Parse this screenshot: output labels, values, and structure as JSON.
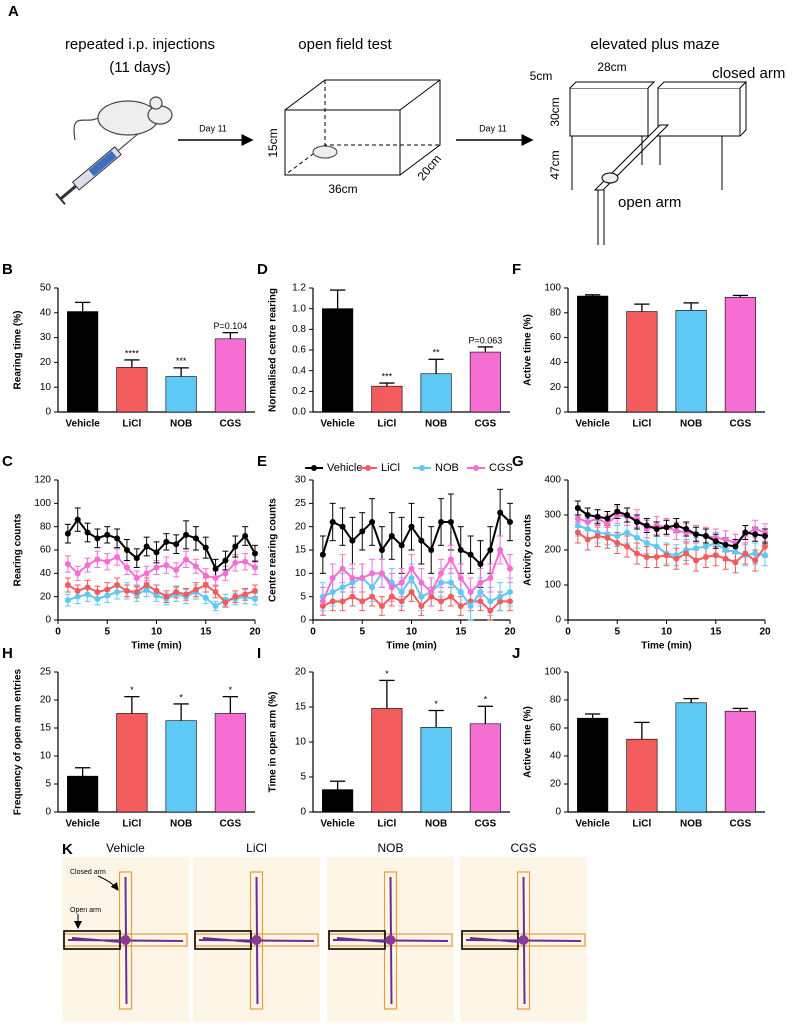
{
  "schematic": {
    "panel": "A",
    "injection_title": "repeated i.p. injections",
    "injection_duration": "(11 days)",
    "open_field_title": "open field test",
    "maze_title": "elevated plus maze",
    "arrow_labels": [
      "Day 11",
      "Day 11"
    ],
    "open_field_dims": [
      "15cm",
      "36cm",
      "20cm"
    ],
    "maze_dims": [
      "5cm",
      "28cm",
      "30cm",
      "47cm"
    ],
    "closed_arm": "closed arm",
    "open_arm": "open arm"
  },
  "chart_data": [
    {
      "panel": "B",
      "type": "bar",
      "ylabel": "Rearing time (%)",
      "categories": [
        "Vehicle",
        "LiCl",
        "NOB",
        "CGS"
      ],
      "values": [
        40.5,
        18,
        14.3,
        29.5
      ],
      "errors": [
        3.7,
        3,
        3.5,
        2.5
      ],
      "colors": [
        "#000000",
        "#f25c5c",
        "#5fc9f5",
        "#f56fd3"
      ],
      "significance": [
        null,
        "****",
        "***",
        "P=0.104"
      ],
      "ylim": [
        0,
        50
      ],
      "yticks": [
        0,
        10,
        20,
        30,
        40,
        50
      ]
    },
    {
      "panel": "D",
      "type": "bar",
      "ylabel": "Normalised centre rearing",
      "categories": [
        "Vehicle",
        "LiCl",
        "NOB",
        "CGS"
      ],
      "values": [
        1.0,
        0.25,
        0.37,
        0.58
      ],
      "errors": [
        0.18,
        0.03,
        0.14,
        0.05
      ],
      "colors": [
        "#000000",
        "#f25c5c",
        "#5fc9f5",
        "#f56fd3"
      ],
      "significance": [
        null,
        "***",
        "**",
        "P=0.063"
      ],
      "ylim": [
        0,
        1.2
      ],
      "yticks": [
        {
          "value": 0,
          "label": "0.0"
        },
        0.2,
        0.4,
        0.6,
        0.8,
        {
          "value": 1,
          "label": "1.0"
        },
        1.2
      ]
    },
    {
      "panel": "F",
      "type": "bar",
      "ylabel": "Active time (%)",
      "categories": [
        "Vehicle",
        "LiCl",
        "NOB",
        "CGS"
      ],
      "values": [
        93.5,
        81,
        82,
        92.5
      ],
      "errors": [
        1,
        6,
        6,
        1.5
      ],
      "colors": [
        "#000000",
        "#f25c5c",
        "#5fc9f5",
        "#f56fd3"
      ],
      "ylim": [
        0,
        100
      ],
      "yticks": [
        0,
        20,
        40,
        60,
        80,
        100
      ]
    },
    {
      "panel": "C",
      "type": "line",
      "xlabel": "Time (min)",
      "ylabel": "Rearing counts",
      "x": [
        1,
        2,
        3,
        4,
        5,
        6,
        7,
        8,
        9,
        10,
        11,
        12,
        13,
        14,
        15,
        16,
        17,
        18,
        19,
        20
      ],
      "xlim": [
        0,
        20
      ],
      "xticks": [
        0,
        5,
        10,
        15,
        20
      ],
      "ylim": [
        0,
        120
      ],
      "yticks": [
        0,
        20,
        40,
        60,
        80,
        100,
        120
      ],
      "series": [
        {
          "color": "#5fc9f5",
          "values": [
            17,
            20,
            22,
            18,
            21,
            24,
            25,
            22,
            26,
            21,
            18,
            22,
            20,
            24,
            19,
            12,
            17,
            18,
            20,
            18
          ],
          "errors": [
            5,
            6,
            6,
            5,
            6,
            6,
            7,
            6,
            6,
            5,
            5,
            6,
            6,
            6,
            5,
            4,
            5,
            5,
            6,
            5
          ]
        },
        {
          "color": "#f25c5c",
          "values": [
            30,
            25,
            28,
            24,
            26,
            30,
            25,
            24,
            30,
            25,
            20,
            24,
            22,
            26,
            30,
            24,
            15,
            20,
            22,
            25
          ],
          "errors": [
            6,
            5,
            6,
            5,
            6,
            6,
            5,
            5,
            6,
            5,
            5,
            5,
            5,
            6,
            6,
            5,
            4,
            5,
            5,
            5
          ]
        },
        {
          "color": "#f56fd3",
          "values": [
            48,
            40,
            47,
            52,
            50,
            54,
            45,
            36,
            40,
            45,
            47,
            43,
            52,
            46,
            38,
            36,
            40,
            49,
            50,
            45
          ],
          "errors": [
            7,
            6,
            6,
            7,
            7,
            7,
            6,
            6,
            6,
            6,
            7,
            6,
            7,
            6,
            6,
            6,
            6,
            7,
            7,
            6
          ]
        },
        {
          "color": "#000000",
          "values": [
            74,
            86,
            75,
            70,
            73,
            70,
            60,
            53,
            63,
            58,
            67,
            65,
            73,
            70,
            62,
            44,
            51,
            63,
            72,
            57
          ],
          "errors": [
            8,
            10,
            8,
            8,
            7,
            8,
            9,
            8,
            8,
            9,
            7,
            8,
            12,
            10,
            9,
            8,
            8,
            9,
            8,
            7
          ]
        }
      ]
    },
    {
      "panel": "E",
      "type": "line",
      "xlabel": "Time (min)",
      "ylabel": "Centre rearing counts",
      "legend": "top",
      "x": [
        1,
        2,
        3,
        4,
        5,
        6,
        7,
        8,
        9,
        10,
        11,
        12,
        13,
        14,
        15,
        16,
        17,
        18,
        19,
        20
      ],
      "xlim": [
        0,
        20
      ],
      "xticks": [
        0,
        5,
        10,
        15,
        20
      ],
      "ylim": [
        0,
        30
      ],
      "yticks": [
        0,
        5,
        10,
        15,
        20,
        25,
        30
      ],
      "series": [
        {
          "name": "Vehicle",
          "color": "#000000",
          "values": [
            14,
            21,
            20,
            17,
            19,
            21,
            15,
            18,
            16,
            20,
            17,
            15,
            21,
            21,
            15,
            14,
            12,
            15,
            23,
            21
          ],
          "errors": [
            4,
            4,
            4,
            5,
            4,
            5,
            5,
            5,
            6,
            5,
            5,
            5,
            5,
            6,
            5,
            4,
            5,
            5,
            5,
            4
          ]
        },
        {
          "name": "LiCl",
          "color": "#f25c5c",
          "values": [
            3,
            4,
            4,
            5,
            4,
            5,
            3,
            5,
            4,
            6,
            3,
            5,
            4,
            5,
            3,
            4,
            4,
            2,
            4,
            4
          ],
          "errors": [
            2,
            2,
            2,
            2,
            2,
            2,
            2,
            2,
            2,
            2,
            2,
            2,
            2,
            2,
            2,
            2,
            2,
            2,
            2,
            2
          ]
        },
        {
          "name": "NOB",
          "color": "#5fc9f5",
          "values": [
            5,
            6,
            7,
            8,
            9,
            7,
            10,
            8,
            6,
            9,
            5,
            6,
            8,
            8,
            6,
            3,
            6,
            4,
            5,
            6
          ],
          "errors": [
            3,
            3,
            3,
            3,
            3,
            3,
            3,
            3,
            3,
            3,
            3,
            3,
            3,
            3,
            3,
            3,
            3,
            3,
            3,
            3
          ]
        },
        {
          "name": "CGS",
          "color": "#f56fd3",
          "values": [
            4,
            9,
            11,
            9,
            9,
            10,
            10,
            7,
            8,
            11,
            8,
            6,
            10,
            13,
            9,
            6,
            8,
            9,
            15,
            11
          ],
          "errors": [
            3,
            3,
            3,
            3,
            3,
            3,
            3,
            3,
            3,
            3,
            3,
            3,
            3,
            3,
            3,
            3,
            3,
            3,
            3,
            3
          ]
        }
      ]
    },
    {
      "panel": "G",
      "type": "line",
      "xlabel": "Time (min)",
      "ylabel": "Activity counts",
      "x": [
        1,
        2,
        3,
        4,
        5,
        6,
        7,
        8,
        9,
        10,
        11,
        12,
        13,
        14,
        15,
        16,
        17,
        18,
        19,
        20
      ],
      "xlim": [
        0,
        20
      ],
      "xticks": [
        0,
        5,
        10,
        15,
        20
      ],
      "ylim": [
        0,
        400
      ],
      "yticks": [
        0,
        100,
        200,
        300,
        400
      ],
      "series": [
        {
          "color": "#5fc9f5",
          "values": [
            270,
            260,
            250,
            245,
            240,
            250,
            235,
            220,
            210,
            190,
            185,
            200,
            205,
            210,
            220,
            200,
            195,
            185,
            190,
            185
          ],
          "errors": [
            30,
            30,
            30,
            30,
            30,
            30,
            30,
            30,
            30,
            30,
            30,
            30,
            30,
            30,
            30,
            30,
            30,
            30,
            30,
            30
          ]
        },
        {
          "color": "#f25c5c",
          "values": [
            250,
            230,
            240,
            235,
            220,
            210,
            190,
            180,
            180,
            185,
            175,
            190,
            170,
            180,
            185,
            175,
            165,
            190,
            170,
            210
          ],
          "errors": [
            30,
            30,
            30,
            30,
            30,
            30,
            30,
            30,
            30,
            30,
            30,
            30,
            30,
            30,
            30,
            30,
            30,
            30,
            30,
            30
          ]
        },
        {
          "color": "#f56fd3",
          "values": [
            290,
            280,
            290,
            275,
            300,
            295,
            290,
            260,
            270,
            265,
            255,
            250,
            245,
            240,
            235,
            230,
            220,
            245,
            260,
            250
          ],
          "errors": [
            25,
            25,
            25,
            25,
            25,
            25,
            25,
            25,
            25,
            25,
            25,
            25,
            25,
            25,
            25,
            25,
            25,
            25,
            25,
            25
          ]
        },
        {
          "color": "#000000",
          "values": [
            320,
            300,
            295,
            290,
            310,
            300,
            280,
            270,
            260,
            265,
            270,
            260,
            245,
            240,
            225,
            215,
            210,
            250,
            245,
            240
          ],
          "errors": [
            20,
            20,
            20,
            20,
            20,
            20,
            20,
            20,
            20,
            20,
            20,
            20,
            20,
            20,
            20,
            20,
            20,
            20,
            20,
            20
          ]
        }
      ]
    },
    {
      "panel": "H",
      "type": "bar",
      "ylabel": "Frequency of open arm entries",
      "categories": [
        "Vehicle",
        "LiCl",
        "NOB",
        "CGS"
      ],
      "values": [
        6.4,
        17.6,
        16.3,
        17.6
      ],
      "errors": [
        1.5,
        3,
        3,
        3
      ],
      "colors": [
        "#000000",
        "#f25c5c",
        "#5fc9f5",
        "#f56fd3"
      ],
      "significance": [
        null,
        "*",
        "*",
        "*"
      ],
      "ylim": [
        0,
        25
      ],
      "yticks": [
        0,
        5,
        10,
        15,
        20,
        25
      ]
    },
    {
      "panel": "I",
      "type": "bar",
      "ylabel": "Time in open arm (%)",
      "categories": [
        "Vehicle",
        "LiCl",
        "NOB",
        "CGS"
      ],
      "values": [
        3.2,
        14.8,
        12.1,
        12.6
      ],
      "errors": [
        1.2,
        4,
        2.4,
        2.5
      ],
      "colors": [
        "#000000",
        "#f25c5c",
        "#5fc9f5",
        "#f56fd3"
      ],
      "significance": [
        null,
        "*",
        "*",
        "*"
      ],
      "ylim": [
        0,
        20
      ],
      "yticks": [
        0,
        5,
        10,
        15,
        20
      ]
    },
    {
      "panel": "J",
      "type": "bar",
      "ylabel": "Active time (%)",
      "categories": [
        "Vehicle",
        "LiCl",
        "NOB",
        "CGS"
      ],
      "values": [
        67,
        52,
        78,
        72
      ],
      "errors": [
        3,
        12,
        3,
        2
      ],
      "colors": [
        "#000000",
        "#f25c5c",
        "#5fc9f5",
        "#f56fd3"
      ],
      "ylim": [
        0,
        100
      ],
      "yticks": [
        0,
        20,
        40,
        60,
        80,
        100
      ]
    }
  ],
  "tracks": {
    "panel": "K",
    "titles": [
      "Vehicle",
      "LiCl",
      "NOB",
      "CGS"
    ],
    "closed_arm": "Closed arm",
    "open_arm": "Open arm"
  }
}
